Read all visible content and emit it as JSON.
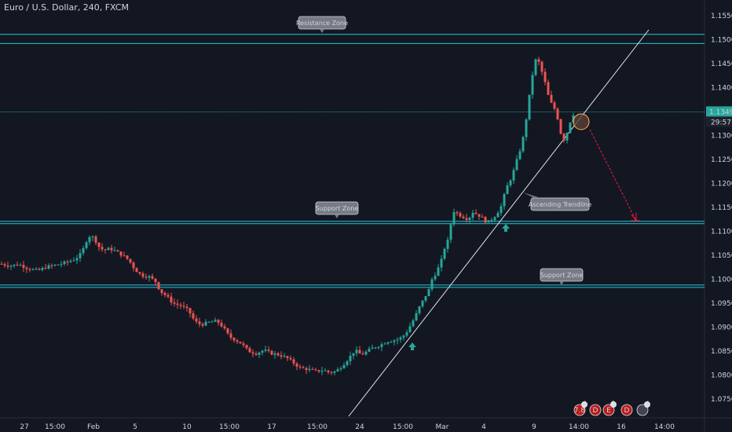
{
  "header": {
    "title": "Euro / U.S. Dollar, 240, FXCM"
  },
  "price_label": {
    "value": "1.13493",
    "countdown": "29:57"
  },
  "chart_data": {
    "type": "candlestick",
    "y_axis_labels": [
      "1.15500",
      "1.15000",
      "1.14500",
      "1.14000",
      "1.13500",
      "1.13000",
      "1.12500",
      "1.12000",
      "1.11500",
      "1.11000",
      "1.10500",
      "1.10000",
      "1.09500",
      "1.09000",
      "1.08500",
      "1.08000",
      "1.07500"
    ],
    "x_axis_labels": [
      "27",
      "15:00",
      "Feb",
      "5",
      "10",
      "15:00",
      "17",
      "15:00",
      "24",
      "15:00",
      "Mar",
      "4",
      "9",
      "14:00",
      "16",
      "14:00"
    ],
    "ylim": [
      1.0725,
      1.1575
    ],
    "zones": [
      {
        "label": "Resistance Zone",
        "top": 1.1511,
        "bottom": 1.1492
      },
      {
        "label": "Support Zone",
        "top": 1.1121,
        "bottom": 1.1116
      },
      {
        "label": "Support Zone",
        "top": 1.0988,
        "bottom": 1.0983
      }
    ],
    "trendline_label": "Ascending Trendline",
    "current_price_level": 1.13493,
    "close_path": [
      [
        0,
        1.1032
      ],
      [
        12,
        1.1028
      ],
      [
        24,
        1.1031
      ],
      [
        36,
        1.1022
      ],
      [
        48,
        1.1018
      ],
      [
        60,
        1.1026
      ],
      [
        72,
        1.103
      ],
      [
        84,
        1.1035
      ],
      [
        96,
        1.1042
      ],
      [
        104,
        1.1055
      ],
      [
        110,
        1.108
      ],
      [
        115,
        1.1092
      ],
      [
        120,
        1.1085
      ],
      [
        126,
        1.1068
      ],
      [
        132,
        1.106
      ],
      [
        140,
        1.1064
      ],
      [
        148,
        1.1058
      ],
      [
        156,
        1.105
      ],
      [
        164,
        1.104
      ],
      [
        172,
        1.102
      ],
      [
        180,
        1.1008
      ],
      [
        190,
        1.1005
      ],
      [
        198,
        1.0995
      ],
      [
        204,
        1.0975
      ],
      [
        212,
        1.0965
      ],
      [
        220,
        1.095
      ],
      [
        230,
        1.0945
      ],
      [
        240,
        1.0935
      ],
      [
        248,
        1.0912
      ],
      [
        256,
        1.0905
      ],
      [
        266,
        1.091
      ],
      [
        276,
        1.0913
      ],
      [
        284,
        1.09
      ],
      [
        292,
        1.088
      ],
      [
        300,
        1.0873
      ],
      [
        308,
        1.0865
      ],
      [
        316,
        1.085
      ],
      [
        326,
        1.0845
      ],
      [
        336,
        1.0852
      ],
      [
        346,
        1.0845
      ],
      [
        356,
        1.0842
      ],
      [
        366,
        1.0835
      ],
      [
        374,
        1.0825
      ],
      [
        382,
        1.0815
      ],
      [
        392,
        1.0812
      ],
      [
        402,
        1.0808
      ],
      [
        412,
        1.081
      ],
      [
        420,
        1.0805
      ],
      [
        428,
        1.0808
      ],
      [
        436,
        1.082
      ],
      [
        444,
        1.0835
      ],
      [
        452,
        1.0852
      ],
      [
        460,
        1.0842
      ],
      [
        468,
        1.085
      ],
      [
        476,
        1.0858
      ],
      [
        484,
        1.0862
      ],
      [
        492,
        1.087
      ],
      [
        500,
        1.0872
      ],
      [
        508,
        1.0875
      ],
      [
        516,
        1.0885
      ],
      [
        522,
        1.0902
      ],
      [
        528,
        1.092
      ],
      [
        534,
        1.0942
      ],
      [
        540,
        1.096
      ],
      [
        546,
        1.0978
      ],
      [
        550,
        1.1
      ],
      [
        556,
        1.1015
      ],
      [
        562,
        1.104
      ],
      [
        566,
        1.1065
      ],
      [
        570,
        1.108
      ],
      [
        574,
        1.1115
      ],
      [
        578,
        1.1142
      ],
      [
        584,
        1.1135
      ],
      [
        590,
        1.113
      ],
      [
        596,
        1.1125
      ],
      [
        602,
        1.114
      ],
      [
        608,
        1.1135
      ],
      [
        614,
        1.1128
      ],
      [
        620,
        1.1118
      ],
      [
        626,
        1.1125
      ],
      [
        632,
        1.1135
      ],
      [
        638,
        1.1152
      ],
      [
        642,
        1.1175
      ],
      [
        646,
        1.1195
      ],
      [
        652,
        1.1215
      ],
      [
        656,
        1.1238
      ],
      [
        660,
        1.1258
      ],
      [
        664,
        1.128
      ],
      [
        668,
        1.131
      ],
      [
        672,
        1.136
      ],
      [
        676,
        1.1405
      ],
      [
        680,
        1.145
      ],
      [
        684,
        1.1465
      ],
      [
        688,
        1.144
      ],
      [
        692,
        1.1425
      ],
      [
        696,
        1.1395
      ],
      [
        700,
        1.1372
      ],
      [
        704,
        1.1362
      ],
      [
        708,
        1.135
      ],
      [
        712,
        1.1322
      ],
      [
        716,
        1.1288
      ],
      [
        720,
        1.1295
      ],
      [
        724,
        1.1318
      ],
      [
        728,
        1.134
      ],
      [
        732,
        1.1349
      ]
    ]
  },
  "callouts": {
    "resistance": "Resistance Zone",
    "support_top": "Support Zone",
    "support_bottom": "Support Zone",
    "trendline": "Ascending Trendline"
  },
  "badges": [
    {
      "label": "7.8",
      "count": "4"
    },
    {
      "label": "D",
      "count": ""
    },
    {
      "label": "E",
      "count": "3"
    },
    {
      "label": "D",
      "count": ""
    },
    {
      "label": "",
      "count": "4"
    }
  ],
  "colors": {
    "background": "#131722",
    "up_candle": "#26a69a",
    "down_candle": "#ef5350",
    "zone_line": "#26c6da",
    "projection": "#ff1744",
    "price_tag": "#26a69a",
    "circle_fill": "#5d4037"
  }
}
